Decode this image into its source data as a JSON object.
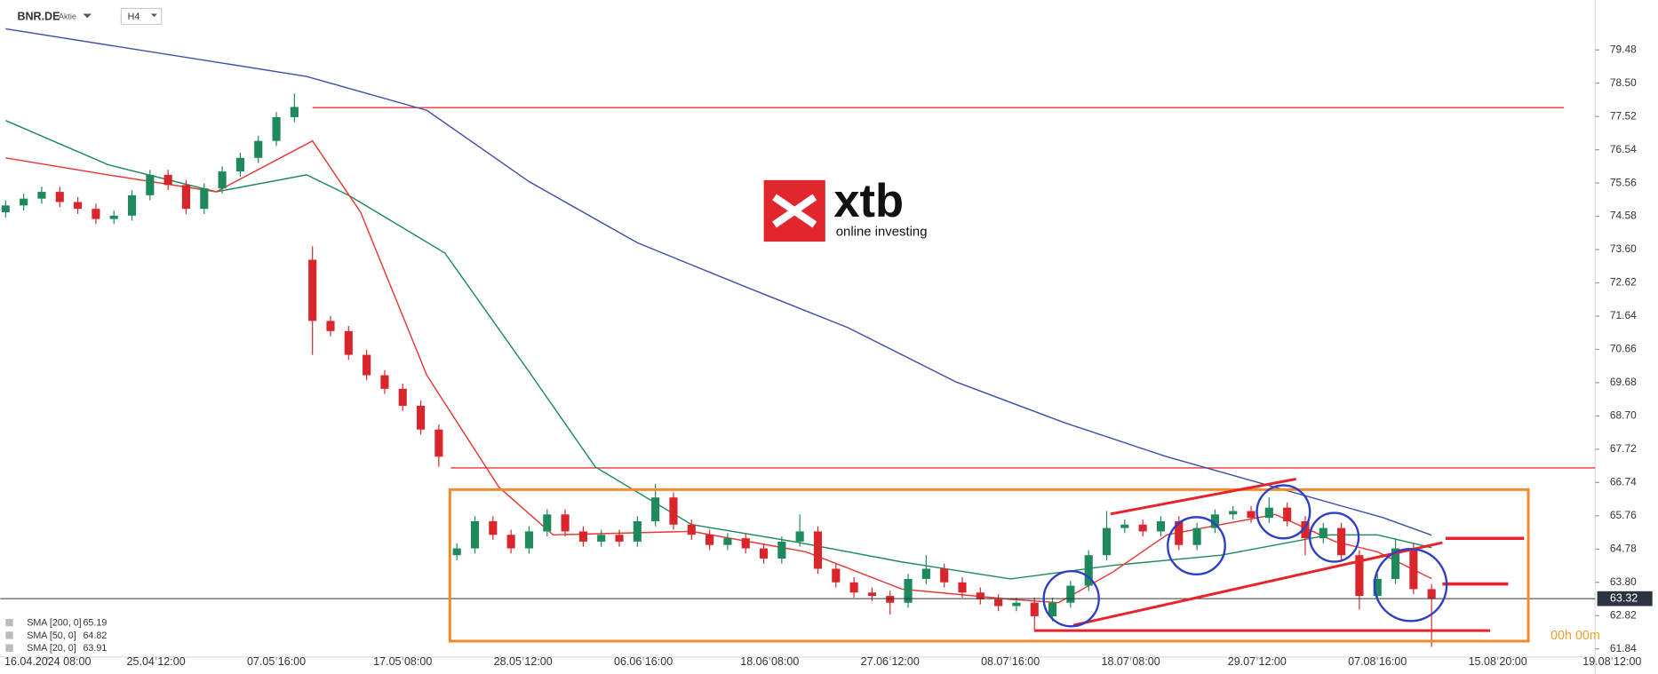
{
  "chart_data": {
    "type": "candlestick",
    "symbol": "BNR.DE",
    "instrument_type": "Aktie",
    "timeframe": "H4",
    "up_color": "#1e8a5c",
    "down_color": "#d9262c",
    "x": [
      0,
      3,
      6,
      9,
      12,
      15,
      18,
      21,
      24,
      27,
      30,
      33,
      36,
      39,
      42,
      45,
      48,
      51,
      54,
      57,
      60,
      63,
      66,
      69,
      72,
      75,
      78,
      81,
      84,
      87,
      90,
      93,
      96,
      99,
      102,
      105,
      108,
      111,
      114,
      117,
      120,
      123,
      126,
      129,
      132,
      135,
      138,
      141,
      144,
      147,
      150,
      153,
      156,
      159,
      162,
      165,
      168,
      171,
      174,
      177,
      180,
      183,
      186,
      189,
      192,
      195,
      198,
      201,
      204,
      207,
      210,
      213,
      216,
      219,
      222,
      225,
      228,
      231,
      234,
      237
    ],
    "candles": [
      [
        74.7,
        75.05,
        74.55,
        74.9
      ],
      [
        74.9,
        75.25,
        74.75,
        75.1
      ],
      [
        75.1,
        75.45,
        74.95,
        75.3
      ],
      [
        75.3,
        75.45,
        74.85,
        75.0
      ],
      [
        75.0,
        75.15,
        74.65,
        74.8
      ],
      [
        74.8,
        74.95,
        74.35,
        74.5
      ],
      [
        74.5,
        74.75,
        74.35,
        74.6
      ],
      [
        74.6,
        75.35,
        74.45,
        75.2
      ],
      [
        75.2,
        75.95,
        75.05,
        75.8
      ],
      [
        75.8,
        75.95,
        75.35,
        75.5
      ],
      [
        75.5,
        75.65,
        74.65,
        74.8
      ],
      [
        74.8,
        75.55,
        74.65,
        75.4
      ],
      [
        75.4,
        76.05,
        75.25,
        75.9
      ],
      [
        75.9,
        76.45,
        75.75,
        76.3
      ],
      [
        76.3,
        76.95,
        76.15,
        76.8
      ],
      [
        76.8,
        77.65,
        76.65,
        77.5
      ],
      [
        77.5,
        78.2,
        77.35,
        77.8
      ],
      [
        73.3,
        73.7,
        70.5,
        71.5
      ],
      [
        71.5,
        71.65,
        71.05,
        71.2
      ],
      [
        71.2,
        71.35,
        70.35,
        70.5
      ],
      [
        70.5,
        70.65,
        69.75,
        69.9
      ],
      [
        69.9,
        70.05,
        69.35,
        69.5
      ],
      [
        69.5,
        69.65,
        68.85,
        69.0
      ],
      [
        69.0,
        69.15,
        68.15,
        68.3
      ],
      [
        68.3,
        68.45,
        67.2,
        67.5
      ],
      [
        64.6,
        64.95,
        64.45,
        64.8
      ],
      [
        64.8,
        65.75,
        64.65,
        65.6
      ],
      [
        65.6,
        65.75,
        65.05,
        65.2
      ],
      [
        65.2,
        65.35,
        64.65,
        64.8
      ],
      [
        64.8,
        65.45,
        64.65,
        65.3
      ],
      [
        65.3,
        65.95,
        65.15,
        65.8
      ],
      [
        65.8,
        65.95,
        65.15,
        65.3
      ],
      [
        65.3,
        65.45,
        64.85,
        65.0
      ],
      [
        65.0,
        65.35,
        64.85,
        65.2
      ],
      [
        65.2,
        65.35,
        64.85,
        65.0
      ],
      [
        65.0,
        65.75,
        64.85,
        65.6
      ],
      [
        65.6,
        66.7,
        65.45,
        66.3
      ],
      [
        66.3,
        66.45,
        65.35,
        65.5
      ],
      [
        65.5,
        65.65,
        65.05,
        65.2
      ],
      [
        65.2,
        65.35,
        64.75,
        64.9
      ],
      [
        64.9,
        65.25,
        64.75,
        65.1
      ],
      [
        65.1,
        65.25,
        64.65,
        64.8
      ],
      [
        64.8,
        64.95,
        64.35,
        64.5
      ],
      [
        64.5,
        65.15,
        64.35,
        65.0
      ],
      [
        65.0,
        65.8,
        64.85,
        65.3
      ],
      [
        65.3,
        65.45,
        64.05,
        64.2
      ],
      [
        64.2,
        64.35,
        63.65,
        63.8
      ],
      [
        63.8,
        63.95,
        63.35,
        63.5
      ],
      [
        63.5,
        63.65,
        63.25,
        63.4
      ],
      [
        63.4,
        63.55,
        62.85,
        63.2
      ],
      [
        63.2,
        64.05,
        63.05,
        63.9
      ],
      [
        63.9,
        64.6,
        63.75,
        64.2
      ],
      [
        64.2,
        64.35,
        63.65,
        63.8
      ],
      [
        63.8,
        63.95,
        63.35,
        63.5
      ],
      [
        63.5,
        63.65,
        63.15,
        63.3
      ],
      [
        63.3,
        63.45,
        62.95,
        63.1
      ],
      [
        63.1,
        63.35,
        62.95,
        63.2
      ],
      [
        63.2,
        63.35,
        62.4,
        62.8
      ],
      [
        62.8,
        63.35,
        62.65,
        63.2
      ],
      [
        63.2,
        63.85,
        63.05,
        63.7
      ],
      [
        63.7,
        64.75,
        63.55,
        64.6
      ],
      [
        64.6,
        65.9,
        64.45,
        65.4
      ],
      [
        65.4,
        65.65,
        65.25,
        65.5
      ],
      [
        65.5,
        65.65,
        65.15,
        65.3
      ],
      [
        65.3,
        65.75,
        65.15,
        65.6
      ],
      [
        65.6,
        65.75,
        64.75,
        64.9
      ],
      [
        64.9,
        65.55,
        64.75,
        65.4
      ],
      [
        65.4,
        65.95,
        65.25,
        65.8
      ],
      [
        65.8,
        66.05,
        65.65,
        65.9
      ],
      [
        65.9,
        66.05,
        65.55,
        65.7
      ],
      [
        65.7,
        66.3,
        65.55,
        66.0
      ],
      [
        66.0,
        66.15,
        65.45,
        65.6
      ],
      [
        65.6,
        65.75,
        64.6,
        65.1
      ],
      [
        65.1,
        65.55,
        64.95,
        65.4
      ],
      [
        65.4,
        65.55,
        64.45,
        64.6
      ],
      [
        64.6,
        64.75,
        63.0,
        63.4
      ],
      [
        63.4,
        64.05,
        63.25,
        63.9
      ],
      [
        63.9,
        65.1,
        63.75,
        64.8
      ],
      [
        64.8,
        64.95,
        63.45,
        63.6
      ],
      [
        63.6,
        63.75,
        61.9,
        63.32
      ]
    ],
    "xlim": [
      0,
      267
    ],
    "xticks": [
      {
        "value": 7,
        "label": "16.04.2024 08:00"
      },
      {
        "value": 25,
        "label": "25.04 12:00"
      },
      {
        "value": 45,
        "label": "07.05 16:00"
      },
      {
        "value": 66,
        "label": "17.05 08:00"
      },
      {
        "value": 86,
        "label": "28.05 12:00"
      },
      {
        "value": 106,
        "label": "06.06 16:00"
      },
      {
        "value": 127,
        "label": "18.06 08:00"
      },
      {
        "value": 147,
        "label": "27.06 12:00"
      },
      {
        "value": 167,
        "label": "08.07 16:00"
      },
      {
        "value": 187,
        "label": "18.07 08:00"
      },
      {
        "value": 208,
        "label": "29.07 12:00"
      },
      {
        "value": 228,
        "label": "07.08 16:00"
      },
      {
        "value": 248,
        "label": "15.08 20:00"
      },
      {
        "value": 267,
        "label": "19.08 12:00"
      }
    ],
    "ylim": [
      61.6,
      80.95
    ],
    "yticks": [
      79.48,
      {
        "value": 78.5,
        "label": "78.50"
      },
      77.52,
      76.54,
      75.56,
      74.58,
      {
        "value": 73.6,
        "label": "73.60"
      },
      72.62,
      71.64,
      70.66,
      69.68,
      {
        "value": 68.7,
        "label": "68.70"
      },
      67.72,
      66.74,
      65.76,
      64.78,
      {
        "value": 63.8,
        "label": "63.80"
      },
      62.82,
      61.84
    ],
    "series": [
      {
        "name": "SMA [200, 0]",
        "last": 65.19,
        "color": "#3f4fa8",
        "x": [
          0,
          50,
          70,
          87,
          105,
          123,
          140,
          158,
          176,
          193,
          211,
          229,
          237
        ],
        "values": [
          80.1,
          78.7,
          77.7,
          75.6,
          73.8,
          72.5,
          71.3,
          69.7,
          68.5,
          67.5,
          66.6,
          65.7,
          65.19
        ]
      },
      {
        "name": "SMA [50, 0]",
        "last": 64.82,
        "color": "#1e8a5c",
        "x": [
          0,
          17,
          35,
          50,
          57,
          73,
          87,
          98,
          114,
          131,
          149,
          167,
          184,
          202,
          220,
          228,
          237
        ],
        "values": [
          77.4,
          76.1,
          75.3,
          75.8,
          75.2,
          73.5,
          70.0,
          67.2,
          65.5,
          65.0,
          64.4,
          63.9,
          64.3,
          64.6,
          65.2,
          65.2,
          64.82
        ]
      },
      {
        "name": "SMA [20, 0]",
        "last": 63.91,
        "color": "#e53935",
        "x": [
          0,
          17,
          35,
          51,
          59,
          70,
          82,
          91,
          114,
          133,
          149,
          167,
          175,
          184,
          193,
          211,
          221,
          228,
          237
        ],
        "values": [
          76.3,
          75.8,
          75.3,
          76.8,
          74.7,
          69.9,
          66.6,
          65.2,
          65.3,
          64.7,
          63.6,
          63.3,
          63.2,
          64.1,
          65.2,
          65.8,
          65.0,
          64.7,
          63.91
        ]
      }
    ],
    "levels": [
      {
        "value": 77.78,
        "color": "#e53935",
        "x": [
          51,
          259
        ]
      },
      {
        "value": 67.17,
        "color": "#e53935",
        "x": [
          74,
          267
        ]
      }
    ],
    "last_price": 63.32,
    "countdown": "00h 00m"
  },
  "watermark": {
    "brand": "xtb",
    "tagline": "online investing"
  }
}
